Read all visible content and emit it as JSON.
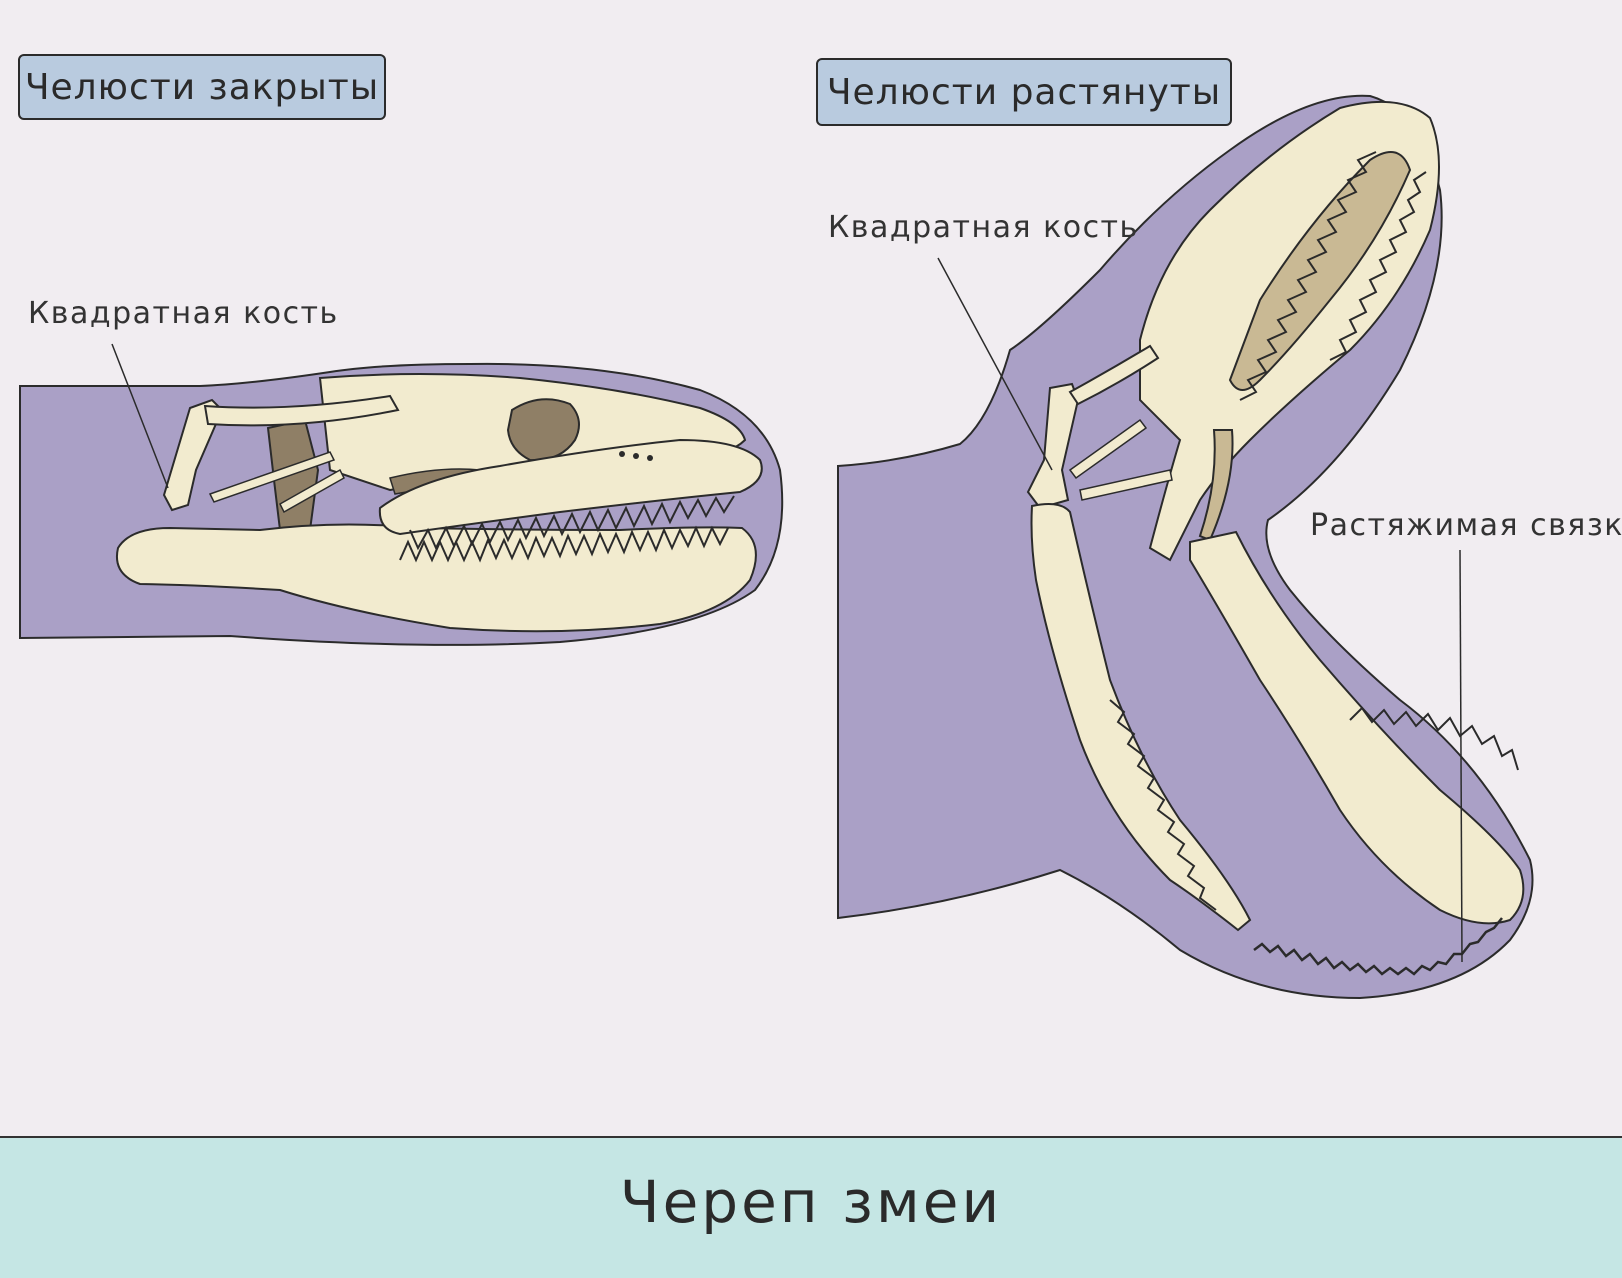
{
  "labels": {
    "jaws_closed": "Челюсти закрыты",
    "jaws_stretched": "Челюсти растянуты"
  },
  "callouts": {
    "quadrate_left": "Квадратная кость",
    "quadrate_right": "Квадратная кость",
    "ligament": "Растяжимая связка"
  },
  "footer": {
    "title": "Череп змеи"
  },
  "colors": {
    "background": "#f1edf1",
    "label_box": "#b9cbdf",
    "snake_body": "#aaa0c6",
    "bone": "#f2ebcf",
    "bone_dark": "#c9b994",
    "bone_shadow": "#8f7f66",
    "footer": "#c5e6e4",
    "outline": "#2b2b2b"
  }
}
